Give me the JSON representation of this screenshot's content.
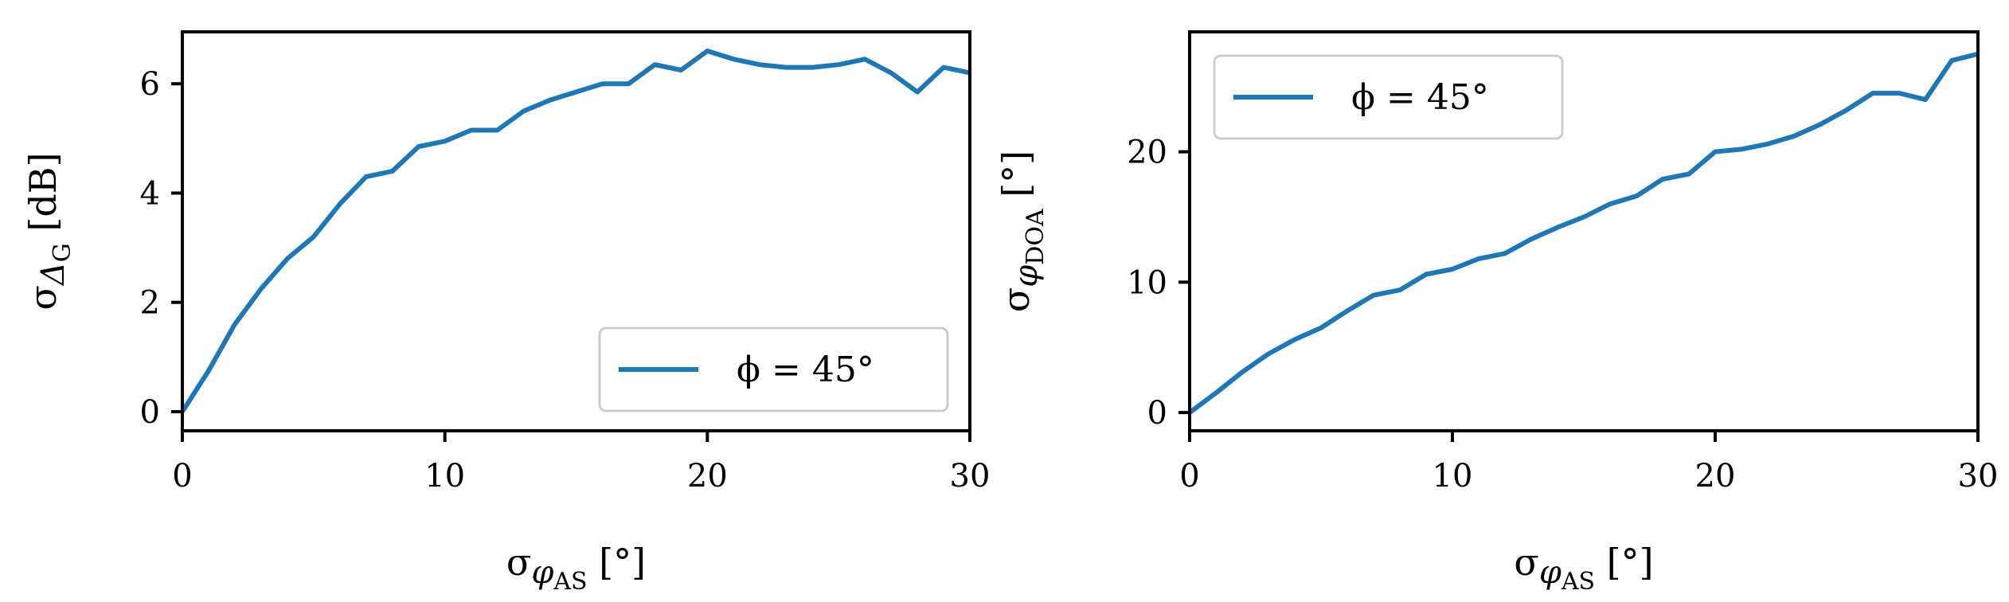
{
  "chart_data": [
    {
      "type": "line",
      "xlabel": "σ_φAS [°]",
      "ylabel": "σ_ΔG [dB]",
      "xlim": [
        0,
        30
      ],
      "ylim": [
        -0.35,
        6.95
      ],
      "xticks": [
        0,
        10,
        20,
        30
      ],
      "yticks": [
        0,
        2,
        4,
        6
      ],
      "grid": false,
      "legend_position": "lower-right",
      "series": [
        {
          "name": "ϕ = 45°",
          "color": "#1f77b4",
          "x": [
            0,
            1,
            2,
            3,
            4,
            5,
            6,
            7,
            8,
            9,
            10,
            11,
            12,
            13,
            14,
            15,
            16,
            17,
            18,
            19,
            20,
            21,
            22,
            23,
            24,
            25,
            26,
            27,
            28,
            29,
            30
          ],
          "values": [
            0,
            0.75,
            1.6,
            2.25,
            2.8,
            3.2,
            3.8,
            4.3,
            4.4,
            4.85,
            4.95,
            5.15,
            5.15,
            5.5,
            5.7,
            5.85,
            6.0,
            6.0,
            6.35,
            6.25,
            6.6,
            6.45,
            6.35,
            6.3,
            6.3,
            6.35,
            6.45,
            6.2,
            5.85,
            6.3,
            6.2
          ]
        }
      ]
    },
    {
      "type": "line",
      "xlabel": "σ_φAS [°]",
      "ylabel": "σ_φDOA [°]",
      "xlim": [
        0,
        30
      ],
      "ylim": [
        -1.4,
        29.2
      ],
      "xticks": [
        0,
        10,
        20,
        30
      ],
      "yticks": [
        0,
        10,
        20
      ],
      "grid": false,
      "legend_position": "upper-left",
      "series": [
        {
          "name": "ϕ = 45°",
          "color": "#1f77b4",
          "x": [
            0,
            1,
            2,
            3,
            4,
            5,
            6,
            7,
            8,
            9,
            10,
            11,
            12,
            13,
            14,
            15,
            16,
            17,
            18,
            19,
            20,
            21,
            22,
            23,
            24,
            25,
            26,
            27,
            28,
            29,
            30
          ],
          "values": [
            0,
            1.5,
            3.1,
            4.5,
            5.6,
            6.5,
            7.8,
            9.0,
            9.4,
            10.6,
            11.0,
            11.8,
            12.2,
            13.3,
            14.2,
            15.0,
            16.0,
            16.6,
            17.9,
            18.3,
            20.0,
            20.2,
            20.6,
            21.2,
            22.1,
            23.2,
            24.5,
            24.5,
            24.0,
            27.0,
            27.5
          ]
        }
      ]
    }
  ]
}
